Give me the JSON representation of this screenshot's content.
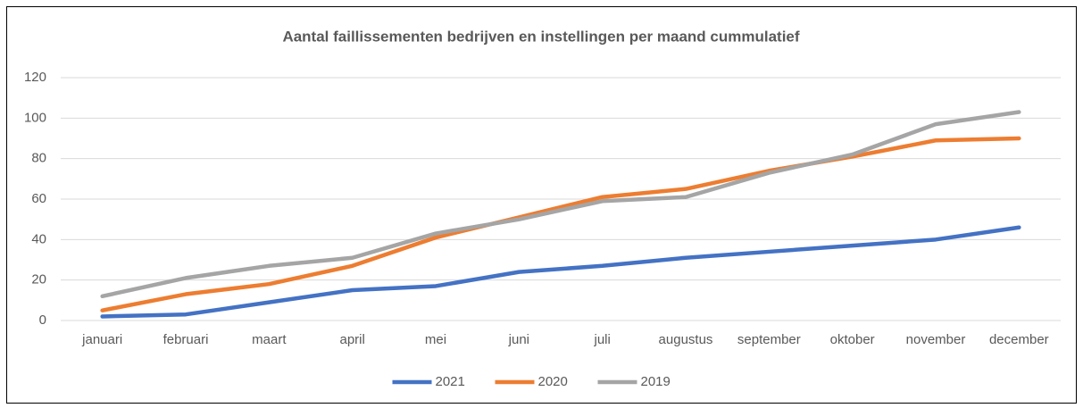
{
  "chart_data": {
    "type": "line",
    "title": "Aantal faillissementen bedrijven en instellingen per maand cummulatief",
    "categories": [
      "januari",
      "februari",
      "maart",
      "april",
      "mei",
      "juni",
      "juli",
      "augustus",
      "september",
      "oktober",
      "november",
      "december"
    ],
    "series": [
      {
        "name": "2021",
        "color": "#4472c4",
        "values": [
          2,
          3,
          9,
          15,
          17,
          24,
          27,
          31,
          34,
          37,
          40,
          46
        ]
      },
      {
        "name": "2020",
        "color": "#ed7d31",
        "values": [
          5,
          13,
          18,
          27,
          41,
          51,
          61,
          65,
          74,
          81,
          89,
          90
        ]
      },
      {
        "name": "2019",
        "color": "#a5a5a5",
        "values": [
          12,
          21,
          27,
          31,
          43,
          50,
          59,
          61,
          73,
          82,
          97,
          103
        ]
      }
    ],
    "ylim": [
      0,
      120
    ],
    "yticks": [
      0,
      20,
      40,
      60,
      80,
      100,
      120
    ],
    "grid": true,
    "legend": "bottom"
  }
}
